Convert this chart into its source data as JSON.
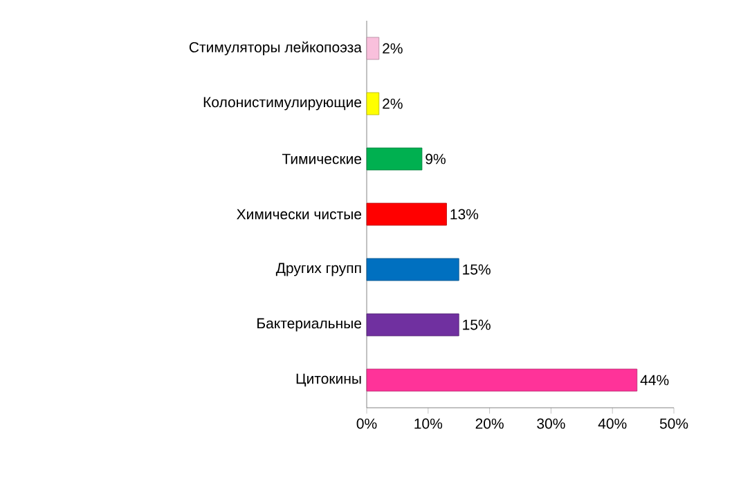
{
  "chart_data": {
    "type": "bar",
    "orientation": "horizontal",
    "categories": [
      "Стимуляторы лейкопоэза",
      "Колонистимулирующие",
      "Тимические",
      "Химически чистые",
      "Других групп",
      "Бактериальные",
      "Цитокины"
    ],
    "values": [
      2,
      2,
      9,
      13,
      15,
      15,
      44
    ],
    "value_labels": [
      "2%",
      "2%",
      "9%",
      "13%",
      "15%",
      "15%",
      "44%"
    ],
    "colors": [
      "#f9c0dc",
      "#ffff00",
      "#00b050",
      "#ff0000",
      "#0070c0",
      "#7030a0",
      "#ff3399"
    ],
    "xlim": [
      0,
      50
    ],
    "xticks": [
      {
        "value": 0,
        "label": "0%"
      },
      {
        "value": 10,
        "label": "10%"
      },
      {
        "value": 20,
        "label": "20%"
      },
      {
        "value": 30,
        "label": "30%"
      },
      {
        "value": 40,
        "label": "40%"
      },
      {
        "value": 50,
        "label": "50%"
      }
    ]
  }
}
